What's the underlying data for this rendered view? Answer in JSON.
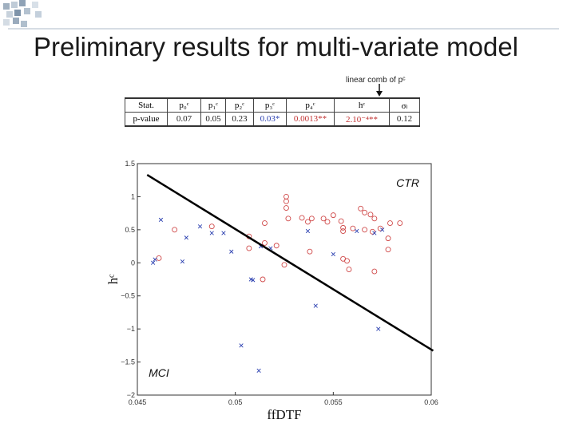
{
  "slide": {
    "title": "Preliminary results for multi-variate model",
    "annotation": "linear comb of pᶜ"
  },
  "stats_table": {
    "header": [
      "Stat.",
      "p₀ᶜ",
      "p₁ᶜ",
      "p₂ᶜ",
      "p₃ᶜ",
      "p₄ᶜ",
      "hᶜ",
      "σₗ"
    ],
    "row_label": "p-value",
    "values": [
      "0.07",
      "0.05",
      "0.23",
      "0.03*",
      "0.0013**",
      "2.10⁻⁴**",
      "0.12"
    ],
    "value_colors": [
      "#222222",
      "#222222",
      "#222222",
      "#2a3fb0",
      "#c03030",
      "#c03030",
      "#222222"
    ]
  },
  "chart_data": {
    "type": "scatter",
    "xlabel": "ffDTF",
    "ylabel": "hᶜ",
    "xlim": [
      0.045,
      0.06
    ],
    "ylim": [
      -2,
      1.5
    ],
    "x_ticks": [
      "0.045",
      "0.05",
      "0.055",
      "0.06"
    ],
    "y_ticks": [
      "1.5",
      "1",
      "0.5",
      "0",
      "−0.5",
      "−1",
      "−1.5",
      "−2"
    ],
    "x_tick_values": [
      0.045,
      0.05,
      0.055,
      0.06
    ],
    "y_tick_values": [
      1.5,
      1,
      0.5,
      0,
      -0.5,
      -1,
      -1.5,
      -2
    ],
    "decision_line": {
      "x": [
        0.0455,
        0.0601
      ],
      "y": [
        1.33,
        -1.33
      ]
    },
    "region_labels": [
      {
        "text": "CTR",
        "x": 0.0588,
        "y": 1.15
      },
      {
        "text": "MCI",
        "x": 0.0461,
        "y": -1.72
      }
    ],
    "series": [
      {
        "name": "CTR",
        "marker": "circle",
        "color": "#d04a4a",
        "points": [
          [
            0.0526,
            1.0
          ],
          [
            0.0526,
            0.93
          ],
          [
            0.0515,
            0.6
          ],
          [
            0.0526,
            0.83
          ],
          [
            0.0527,
            0.67
          ],
          [
            0.0534,
            0.68
          ],
          [
            0.0537,
            0.62
          ],
          [
            0.0539,
            0.67
          ],
          [
            0.0545,
            0.67
          ],
          [
            0.0547,
            0.62
          ],
          [
            0.055,
            0.72
          ],
          [
            0.0554,
            0.63
          ],
          [
            0.0555,
            0.53
          ],
          [
            0.0555,
            0.48
          ],
          [
            0.056,
            0.52
          ],
          [
            0.0564,
            0.82
          ],
          [
            0.0566,
            0.76
          ],
          [
            0.0569,
            0.73
          ],
          [
            0.0566,
            0.5
          ],
          [
            0.057,
            0.47
          ],
          [
            0.0571,
            0.67
          ],
          [
            0.0574,
            0.52
          ],
          [
            0.0579,
            0.6
          ],
          [
            0.0584,
            0.6
          ],
          [
            0.0578,
            0.37
          ],
          [
            0.0578,
            0.2
          ],
          [
            0.0469,
            0.5
          ],
          [
            0.0488,
            0.55
          ],
          [
            0.0507,
            0.4
          ],
          [
            0.0507,
            0.22
          ],
          [
            0.0521,
            0.26
          ],
          [
            0.0538,
            0.17
          ],
          [
            0.0555,
            0.06
          ],
          [
            0.0557,
            0.03
          ],
          [
            0.0558,
            -0.1
          ],
          [
            0.0571,
            -0.13
          ],
          [
            0.0514,
            -0.25
          ],
          [
            0.0525,
            -0.03
          ],
          [
            0.0461,
            0.07
          ],
          [
            0.0515,
            0.3
          ]
        ]
      },
      {
        "name": "MCI",
        "marker": "x",
        "color": "#2a3fb0",
        "points": [
          [
            0.0459,
            0.05
          ],
          [
            0.0458,
            0.0
          ],
          [
            0.0462,
            0.65
          ],
          [
            0.0473,
            0.02
          ],
          [
            0.0475,
            0.38
          ],
          [
            0.0482,
            0.55
          ],
          [
            0.0488,
            0.45
          ],
          [
            0.0494,
            0.45
          ],
          [
            0.0498,
            0.17
          ],
          [
            0.0508,
            -0.25
          ],
          [
            0.0509,
            -0.26
          ],
          [
            0.0513,
            0.25
          ],
          [
            0.0518,
            0.22
          ],
          [
            0.0537,
            0.48
          ],
          [
            0.055,
            0.13
          ],
          [
            0.0541,
            -0.65
          ],
          [
            0.0503,
            -1.25
          ],
          [
            0.0512,
            -1.63
          ],
          [
            0.0573,
            -1.0
          ],
          [
            0.0571,
            0.45
          ],
          [
            0.0575,
            0.5
          ],
          [
            0.0562,
            0.48
          ]
        ]
      }
    ]
  }
}
